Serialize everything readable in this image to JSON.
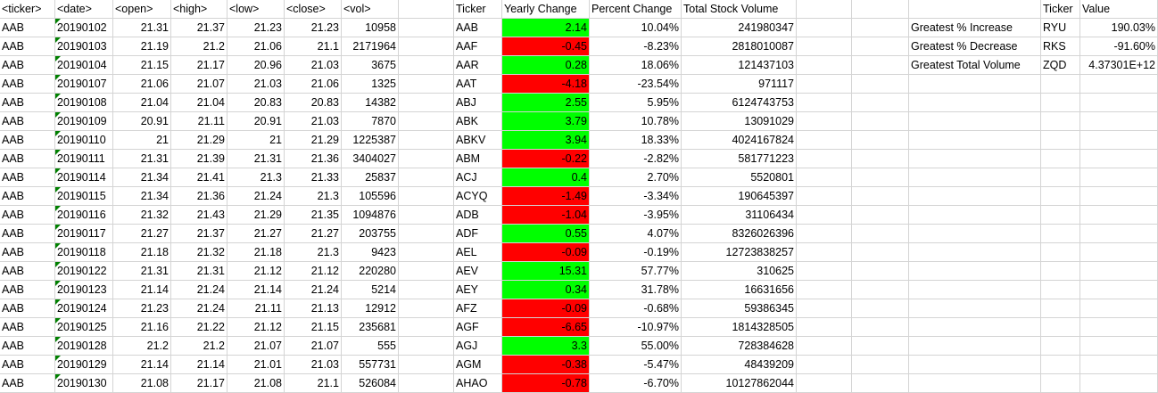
{
  "headers": {
    "ticker": "<ticker>",
    "date": "<date>",
    "open": "<open>",
    "high": "<high>",
    "low": "<low>",
    "close": "<close>",
    "vol": "<vol>",
    "summary_ticker": "Ticker",
    "yearly_change": "Yearly Change",
    "percent_change": "Percent Change",
    "total_volume": "Total Stock Volume",
    "greatest_ticker": "Ticker",
    "greatest_value": "Value"
  },
  "raw_rows": [
    [
      "AAB",
      "20190102",
      "21.31",
      "21.37",
      "21.23",
      "21.23",
      "10958"
    ],
    [
      "AAB",
      "20190103",
      "21.19",
      "21.2",
      "21.06",
      "21.1",
      "2171964"
    ],
    [
      "AAB",
      "20190104",
      "21.15",
      "21.17",
      "20.96",
      "21.03",
      "3675"
    ],
    [
      "AAB",
      "20190107",
      "21.06",
      "21.07",
      "21.03",
      "21.06",
      "1325"
    ],
    [
      "AAB",
      "20190108",
      "21.04",
      "21.04",
      "20.83",
      "20.83",
      "14382"
    ],
    [
      "AAB",
      "20190109",
      "20.91",
      "21.11",
      "20.91",
      "21.03",
      "7870"
    ],
    [
      "AAB",
      "20190110",
      "21",
      "21.29",
      "21",
      "21.29",
      "1225387"
    ],
    [
      "AAB",
      "20190111",
      "21.31",
      "21.39",
      "21.31",
      "21.36",
      "3404027"
    ],
    [
      "AAB",
      "20190114",
      "21.34",
      "21.41",
      "21.3",
      "21.33",
      "25837"
    ],
    [
      "AAB",
      "20190115",
      "21.34",
      "21.36",
      "21.24",
      "21.3",
      "105596"
    ],
    [
      "AAB",
      "20190116",
      "21.32",
      "21.43",
      "21.29",
      "21.35",
      "1094876"
    ],
    [
      "AAB",
      "20190117",
      "21.27",
      "21.37",
      "21.27",
      "21.27",
      "203755"
    ],
    [
      "AAB",
      "20190118",
      "21.18",
      "21.32",
      "21.18",
      "21.3",
      "9423"
    ],
    [
      "AAB",
      "20190122",
      "21.31",
      "21.31",
      "21.12",
      "21.12",
      "220280"
    ],
    [
      "AAB",
      "20190123",
      "21.14",
      "21.24",
      "21.14",
      "21.24",
      "5214"
    ],
    [
      "AAB",
      "20190124",
      "21.23",
      "21.24",
      "21.11",
      "21.13",
      "12912"
    ],
    [
      "AAB",
      "20190125",
      "21.16",
      "21.22",
      "21.12",
      "21.15",
      "235681"
    ],
    [
      "AAB",
      "20190128",
      "21.2",
      "21.2",
      "21.07",
      "21.07",
      "555"
    ],
    [
      "AAB",
      "20190129",
      "21.14",
      "21.14",
      "21.01",
      "21.03",
      "557731"
    ],
    [
      "AAB",
      "20190130",
      "21.08",
      "21.17",
      "21.08",
      "21.1",
      "526084"
    ]
  ],
  "summary_rows": [
    {
      "ticker": "AAB",
      "yearly_change": "2.14",
      "positive": true,
      "percent_change": "10.04%",
      "total_volume": "241980347"
    },
    {
      "ticker": "AAF",
      "yearly_change": "-0.45",
      "positive": false,
      "percent_change": "-8.23%",
      "total_volume": "2818010087"
    },
    {
      "ticker": "AAR",
      "yearly_change": "0.28",
      "positive": true,
      "percent_change": "18.06%",
      "total_volume": "121437103"
    },
    {
      "ticker": "AAT",
      "yearly_change": "-4.18",
      "positive": false,
      "percent_change": "-23.54%",
      "total_volume": "971117"
    },
    {
      "ticker": "ABJ",
      "yearly_change": "2.55",
      "positive": true,
      "percent_change": "5.95%",
      "total_volume": "6124743753"
    },
    {
      "ticker": "ABK",
      "yearly_change": "3.79",
      "positive": true,
      "percent_change": "10.78%",
      "total_volume": "13091029"
    },
    {
      "ticker": "ABKV",
      "yearly_change": "3.94",
      "positive": true,
      "percent_change": "18.33%",
      "total_volume": "4024167824"
    },
    {
      "ticker": "ABM",
      "yearly_change": "-0.22",
      "positive": false,
      "percent_change": "-2.82%",
      "total_volume": "581771223"
    },
    {
      "ticker": "ACJ",
      "yearly_change": "0.4",
      "positive": true,
      "percent_change": "2.70%",
      "total_volume": "5520801"
    },
    {
      "ticker": "ACYQ",
      "yearly_change": "-1.49",
      "positive": false,
      "percent_change": "-3.34%",
      "total_volume": "190645397"
    },
    {
      "ticker": "ADB",
      "yearly_change": "-1.04",
      "positive": false,
      "percent_change": "-3.95%",
      "total_volume": "31106434"
    },
    {
      "ticker": "ADF",
      "yearly_change": "0.55",
      "positive": true,
      "percent_change": "4.07%",
      "total_volume": "8326026396"
    },
    {
      "ticker": "AEL",
      "yearly_change": "-0.09",
      "positive": false,
      "percent_change": "-0.19%",
      "total_volume": "12723838257"
    },
    {
      "ticker": "AEV",
      "yearly_change": "15.31",
      "positive": true,
      "percent_change": "57.77%",
      "total_volume": "310625"
    },
    {
      "ticker": "AEY",
      "yearly_change": "0.34",
      "positive": true,
      "percent_change": "31.78%",
      "total_volume": "16631656"
    },
    {
      "ticker": "AFZ",
      "yearly_change": "-0.09",
      "positive": false,
      "percent_change": "-0.68%",
      "total_volume": "59386345"
    },
    {
      "ticker": "AGF",
      "yearly_change": "-6.65",
      "positive": false,
      "percent_change": "-10.97%",
      "total_volume": "1814328505"
    },
    {
      "ticker": "AGJ",
      "yearly_change": "3.3",
      "positive": true,
      "percent_change": "55.00%",
      "total_volume": "728384628"
    },
    {
      "ticker": "AGM",
      "yearly_change": "-0.38",
      "positive": false,
      "percent_change": "-5.47%",
      "total_volume": "48439209"
    },
    {
      "ticker": "AHAO",
      "yearly_change": "-0.78",
      "positive": false,
      "percent_change": "-6.70%",
      "total_volume": "10127862044"
    }
  ],
  "greatest_rows": [
    {
      "label": "Greatest % Increase",
      "ticker": "RYU",
      "value": "190.03%"
    },
    {
      "label": "Greatest % Decrease",
      "ticker": "RKS",
      "value": "-91.60%"
    },
    {
      "label": "Greatest Total Volume",
      "ticker": "ZQD",
      "value": "4.37301E+12"
    }
  ],
  "colors": {
    "positive_fill": "#00ff00",
    "negative_fill": "#ff0000",
    "gridline": "#d4d4d4",
    "text_as_number_flag": "#008000"
  }
}
